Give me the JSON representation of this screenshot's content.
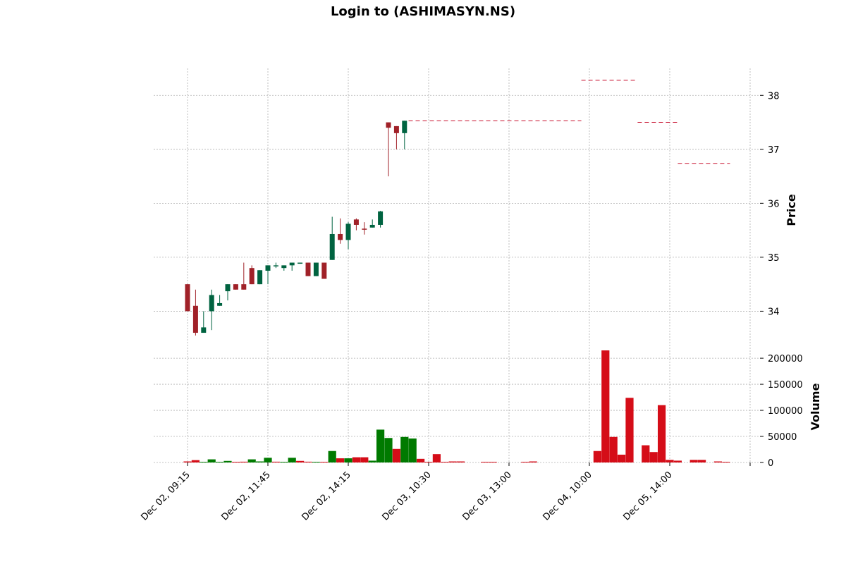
{
  "chart_data": {
    "type": "candlestick",
    "title": "Login to (ASHIMASYN.NS)",
    "ylabel": "Price",
    "ylabel_lower": "Volume",
    "grid": true,
    "colors": {
      "up": "#006340",
      "down": "#a02128",
      "vol_up": "#007a00",
      "vol_down": "#d50d18",
      "hline": "#c8102e"
    },
    "price_ylim": [
      33.3,
      38.5
    ],
    "price_ticks": [
      "34",
      "35",
      "36",
      "37",
      "38"
    ],
    "volume_ylim": [
      0,
      215000
    ],
    "volume_ticks": [
      "0",
      "50000",
      "100000",
      "150000",
      "200000"
    ],
    "x_ticks": [
      {
        "index": 0,
        "label": "Dec 02, 09:15"
      },
      {
        "index": 10,
        "label": "Dec 02, 11:45"
      },
      {
        "index": 20,
        "label": "Dec 02, 14:15"
      },
      {
        "index": 30,
        "label": "Dec 03, 10:30"
      },
      {
        "index": 40,
        "label": "Dec 03, 13:00"
      },
      {
        "index": 50,
        "label": "Dec 04, 10:00"
      },
      {
        "index": 60,
        "label": "Dec 05, 14:00"
      },
      {
        "index": 70,
        "label": ""
      }
    ],
    "candles": [
      {
        "i": 0,
        "o": 34.5,
        "h": 34.5,
        "l": 34.0,
        "c": 34.0
      },
      {
        "i": 1,
        "o": 34.1,
        "h": 34.4,
        "l": 33.55,
        "c": 33.6
      },
      {
        "i": 2,
        "o": 33.6,
        "h": 34.0,
        "l": 33.6,
        "c": 33.7
      },
      {
        "i": 3,
        "o": 34.0,
        "h": 34.4,
        "l": 33.65,
        "c": 34.3
      },
      {
        "i": 4,
        "o": 34.1,
        "h": 34.3,
        "l": 34.1,
        "c": 34.15
      },
      {
        "i": 5,
        "o": 34.37,
        "h": 34.5,
        "l": 34.2,
        "c": 34.5
      },
      {
        "i": 6,
        "o": 34.5,
        "h": 34.5,
        "l": 34.4,
        "c": 34.4
      },
      {
        "i": 7,
        "o": 34.5,
        "h": 34.9,
        "l": 34.4,
        "c": 34.4
      },
      {
        "i": 8,
        "o": 34.8,
        "h": 34.85,
        "l": 34.5,
        "c": 34.5
      },
      {
        "i": 9,
        "o": 34.5,
        "h": 34.76,
        "l": 34.5,
        "c": 34.76
      },
      {
        "i": 10,
        "o": 34.75,
        "h": 34.85,
        "l": 34.5,
        "c": 34.85
      },
      {
        "i": 11,
        "o": 34.85,
        "h": 34.9,
        "l": 34.8,
        "c": 34.85
      },
      {
        "i": 12,
        "o": 34.8,
        "h": 34.85,
        "l": 34.75,
        "c": 34.85
      },
      {
        "i": 13,
        "o": 34.85,
        "h": 34.9,
        "l": 34.75,
        "c": 34.9
      },
      {
        "i": 14,
        "o": 34.88,
        "h": 34.9,
        "l": 34.88,
        "c": 34.9
      },
      {
        "i": 15,
        "o": 34.9,
        "h": 34.9,
        "l": 34.65,
        "c": 34.65
      },
      {
        "i": 16,
        "o": 34.65,
        "h": 34.9,
        "l": 34.65,
        "c": 34.9
      },
      {
        "i": 17,
        "o": 34.9,
        "h": 34.9,
        "l": 34.6,
        "c": 34.6
      },
      {
        "i": 18,
        "o": 34.95,
        "h": 35.75,
        "l": 34.95,
        "c": 35.43
      },
      {
        "i": 19,
        "o": 35.43,
        "h": 35.72,
        "l": 35.25,
        "c": 35.32
      },
      {
        "i": 20,
        "o": 35.32,
        "h": 35.65,
        "l": 35.15,
        "c": 35.62
      },
      {
        "i": 21,
        "o": 35.7,
        "h": 35.72,
        "l": 35.5,
        "c": 35.6
      },
      {
        "i": 22,
        "o": 35.53,
        "h": 35.65,
        "l": 35.42,
        "c": 35.52
      },
      {
        "i": 23,
        "o": 35.55,
        "h": 35.7,
        "l": 35.55,
        "c": 35.6
      },
      {
        "i": 24,
        "o": 35.6,
        "h": 35.86,
        "l": 35.55,
        "c": 35.85
      },
      {
        "i": 25,
        "o": 37.5,
        "h": 37.5,
        "l": 36.5,
        "c": 37.4
      },
      {
        "i": 26,
        "o": 37.43,
        "h": 37.43,
        "l": 37.0,
        "c": 37.3
      },
      {
        "i": 27,
        "o": 37.3,
        "h": 37.53,
        "l": 37.0,
        "c": 37.53
      }
    ],
    "hlines": [
      {
        "x0": 27.5,
        "x1": 49.0,
        "y": 37.53
      },
      {
        "x0": 49.0,
        "x1": 56.0,
        "y": 38.28
      },
      {
        "x0": 56.0,
        "x1": 61.0,
        "y": 37.5
      },
      {
        "x0": 61.0,
        "x1": 67.5,
        "y": 36.74
      }
    ],
    "volumes": [
      {
        "i": 0,
        "v": 2000,
        "dir": "down"
      },
      {
        "i": 1,
        "v": 4500,
        "dir": "down"
      },
      {
        "i": 2,
        "v": 1000,
        "dir": "up"
      },
      {
        "i": 3,
        "v": 6000,
        "dir": "up"
      },
      {
        "i": 4,
        "v": 1000,
        "dir": "up"
      },
      {
        "i": 5,
        "v": 3000,
        "dir": "up"
      },
      {
        "i": 6,
        "v": 1000,
        "dir": "down"
      },
      {
        "i": 7,
        "v": 1500,
        "dir": "down"
      },
      {
        "i": 8,
        "v": 6000,
        "dir": "up"
      },
      {
        "i": 9,
        "v": 2000,
        "dir": "up"
      },
      {
        "i": 10,
        "v": 9000,
        "dir": "up"
      },
      {
        "i": 11,
        "v": 1500,
        "dir": "down"
      },
      {
        "i": 12,
        "v": 500,
        "dir": "up"
      },
      {
        "i": 13,
        "v": 9000,
        "dir": "up"
      },
      {
        "i": 14,
        "v": 3000,
        "dir": "down"
      },
      {
        "i": 15,
        "v": 1500,
        "dir": "down"
      },
      {
        "i": 16,
        "v": 500,
        "dir": "up"
      },
      {
        "i": 17,
        "v": 500,
        "dir": "down"
      },
      {
        "i": 18,
        "v": 22000,
        "dir": "up"
      },
      {
        "i": 19,
        "v": 8000,
        "dir": "down"
      },
      {
        "i": 20,
        "v": 8000,
        "dir": "up"
      },
      {
        "i": 21,
        "v": 10000,
        "dir": "down"
      },
      {
        "i": 22,
        "v": 10000,
        "dir": "down"
      },
      {
        "i": 23,
        "v": 3500,
        "dir": "up"
      },
      {
        "i": 24,
        "v": 63000,
        "dir": "up"
      },
      {
        "i": 25,
        "v": 47000,
        "dir": "up"
      },
      {
        "i": 26,
        "v": 26000,
        "dir": "down"
      },
      {
        "i": 27,
        "v": 49000,
        "dir": "up"
      },
      {
        "i": 28,
        "v": 46000,
        "dir": "up"
      },
      {
        "i": 29,
        "v": 7000,
        "dir": "down"
      },
      {
        "i": 30,
        "v": 1000,
        "dir": "down"
      },
      {
        "i": 31,
        "v": 16000,
        "dir": "down"
      },
      {
        "i": 32,
        "v": 500,
        "dir": "down"
      },
      {
        "i": 33,
        "v": 2000,
        "dir": "down"
      },
      {
        "i": 34,
        "v": 2000,
        "dir": "down"
      },
      {
        "i": 37,
        "v": 1000,
        "dir": "down"
      },
      {
        "i": 38,
        "v": 1000,
        "dir": "down"
      },
      {
        "i": 42,
        "v": 500,
        "dir": "down"
      },
      {
        "i": 43,
        "v": 2000,
        "dir": "down"
      },
      {
        "i": 51,
        "v": 22000,
        "dir": "down"
      },
      {
        "i": 52,
        "v": 215000,
        "dir": "down"
      },
      {
        "i": 53,
        "v": 49000,
        "dir": "down"
      },
      {
        "i": 54,
        "v": 15000,
        "dir": "down"
      },
      {
        "i": 55,
        "v": 124000,
        "dir": "down"
      },
      {
        "i": 57,
        "v": 33000,
        "dir": "down"
      },
      {
        "i": 58,
        "v": 20000,
        "dir": "down"
      },
      {
        "i": 59,
        "v": 110000,
        "dir": "down"
      },
      {
        "i": 60,
        "v": 5000,
        "dir": "down"
      },
      {
        "i": 61,
        "v": 3500,
        "dir": "down"
      },
      {
        "i": 63,
        "v": 5000,
        "dir": "down"
      },
      {
        "i": 64,
        "v": 5000,
        "dir": "down"
      },
      {
        "i": 66,
        "v": 2000,
        "dir": "down"
      },
      {
        "i": 67,
        "v": 1000,
        "dir": "down"
      }
    ]
  }
}
